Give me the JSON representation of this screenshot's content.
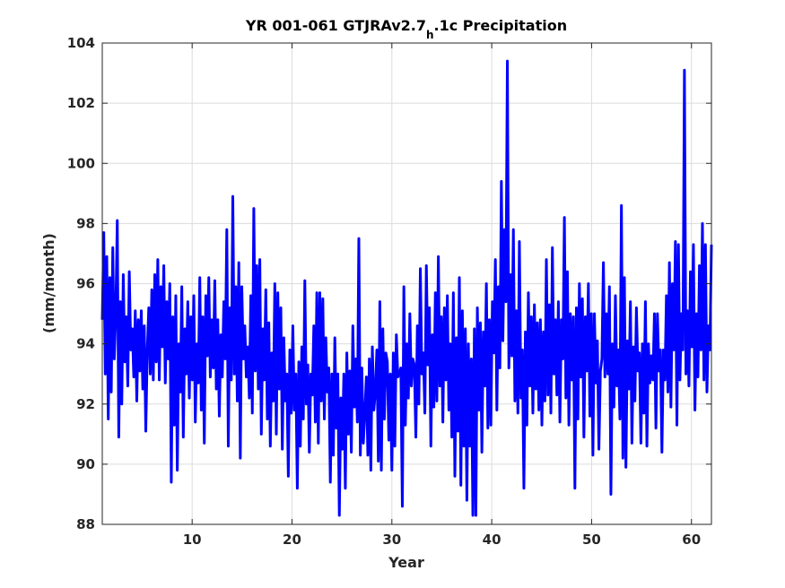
{
  "chart_data": {
    "type": "line",
    "title_main": "YR 001-061 GTJRAv2.7",
    "title_sub": "h",
    "title_tail": ".1c Precipitation",
    "xlabel": "Year",
    "ylabel": "(mm/month)",
    "xlim": [
      1,
      62
    ],
    "ylim": [
      88,
      104
    ],
    "xticks": [
      10,
      20,
      30,
      40,
      50,
      60
    ],
    "yticks": [
      88,
      90,
      92,
      94,
      96,
      98,
      100,
      102,
      104
    ],
    "grid": true,
    "line_color": "#0000ff",
    "series": [
      {
        "x_start": 1,
        "x_end": 62,
        "values": [
          94.8,
          97.7,
          93.0,
          96.9,
          91.5,
          96.2,
          92.4,
          97.2,
          93.5,
          95.0,
          98.1,
          90.9,
          95.4,
          92.0,
          96.3,
          93.4,
          94.9,
          92.6,
          96.4,
          93.8,
          94.5,
          92.9,
          95.1,
          92.1,
          94.8,
          93.1,
          95.1,
          92.5,
          94.6,
          91.1,
          93.8,
          95.2,
          93.0,
          95.8,
          92.8,
          96.3,
          93.4,
          96.8,
          92.8,
          95.9,
          93.9,
          96.6,
          92.7,
          95.4,
          93.5,
          96.0,
          89.4,
          94.9,
          91.3,
          95.6,
          89.8,
          94.0,
          92.4,
          95.9,
          90.9,
          94.5,
          93.0,
          95.4,
          92.2,
          94.9,
          92.8,
          95.6,
          91.4,
          94.0,
          92.7,
          96.2,
          91.8,
          94.9,
          90.7,
          95.6,
          93.6,
          96.2,
          92.9,
          94.8,
          93.2,
          96.1,
          92.5,
          94.8,
          91.6,
          94.3,
          92.9,
          95.4,
          93.5,
          97.8,
          90.6,
          95.2,
          92.8,
          98.9,
          93.0,
          95.9,
          92.1,
          96.7,
          90.2,
          95.9,
          93.5,
          94.6,
          92.9,
          93.9,
          92.2,
          95.6,
          91.7,
          98.5,
          93.1,
          96.6,
          92.5,
          96.8,
          91.0,
          94.5,
          92.8,
          95.8,
          91.5,
          94.7,
          90.6,
          93.7,
          92.1,
          96.0,
          91.0,
          95.7,
          92.5,
          95.2,
          90.5,
          94.2,
          92.1,
          93.0,
          89.6,
          93.8,
          91.7,
          94.6,
          91.8,
          93.0,
          89.2,
          93.4,
          90.6,
          93.9,
          91.5,
          96.1,
          92.0,
          93.3,
          90.4,
          93.0,
          92.3,
          94.6,
          91.4,
          95.7,
          90.7,
          95.7,
          92.1,
          95.5,
          91.5,
          94.2,
          92.4,
          93.2,
          89.4,
          93.0,
          90.3,
          94.2,
          91.2,
          93.0,
          88.3,
          92.2,
          90.5,
          93.0,
          89.2,
          93.7,
          91.0,
          93.1,
          90.4,
          94.6,
          91.9,
          93.5,
          91.4,
          97.5,
          90.3,
          93.2,
          90.7,
          91.7,
          92.9,
          90.3,
          93.5,
          89.8,
          93.9,
          91.8,
          92.4,
          93.8,
          90.1,
          95.4,
          89.8,
          94.5,
          91.5,
          93.7,
          93.4,
          90.8,
          93.0,
          89.8,
          93.7,
          90.6,
          94.3,
          92.9,
          93.0,
          93.2,
          88.6,
          95.9,
          91.3,
          94.0,
          92.2,
          95.0,
          92.6,
          93.5,
          93.3,
          90.9,
          94.6,
          92.0,
          96.5,
          93.0,
          93.7,
          91.7,
          96.6,
          93.3,
          95.2,
          90.6,
          94.3,
          91.9,
          95.7,
          92.1,
          96.9,
          92.6,
          94.9,
          91.4,
          95.2,
          92.8,
          95.6,
          91.8,
          94.0,
          90.9,
          95.7,
          89.6,
          94.2,
          91.1,
          96.2,
          89.3,
          95.1,
          90.6,
          94.5,
          88.8,
          94.0,
          90.6,
          93.5,
          88.3,
          94.5,
          88.3,
          95.2,
          91.8,
          94.7,
          90.4,
          94.4,
          92.6,
          96.0,
          91.2,
          94.8,
          91.3,
          95.4,
          93.7,
          96.8,
          91.8,
          95.9,
          93.2,
          99.4,
          94.1,
          97.8,
          95.4,
          103.4,
          93.2,
          96.3,
          93.6,
          97.8,
          92.1,
          95.1,
          91.7,
          97.4,
          92.2,
          93.8,
          89.2,
          94.4,
          91.3,
          95.7,
          92.6,
          94.9,
          91.7,
          95.3,
          92.5,
          94.7,
          91.8,
          94.8,
          91.3,
          94.4,
          92.1,
          96.8,
          92.3,
          95.3,
          91.7,
          97.2,
          93.0,
          94.8,
          92.3,
          95.4,
          91.4,
          94.8,
          93.5,
          98.2,
          92.2,
          96.4,
          91.3,
          95.0,
          92.8,
          94.9,
          89.2,
          95.2,
          91.5,
          96.0,
          92.9,
          95.5,
          90.9,
          94.9,
          93.1,
          96.0,
          91.6,
          95.0,
          90.3,
          95.0,
          92.7,
          94.1,
          90.5,
          93.1,
          93.5,
          96.7,
          92.9,
          95.0,
          93.0,
          95.9,
          89.0,
          94.0,
          91.9,
          95.6,
          92.6,
          93.8,
          91.5,
          98.6,
          90.2,
          96.2,
          89.9,
          94.1,
          92.5,
          95.4,
          90.7,
          93.9,
          92.1,
          95.2,
          93.1,
          93.7,
          90.7,
          94.0,
          91.7,
          95.4,
          90.6,
          94.0,
          92.7,
          93.6,
          92.8,
          95.0,
          91.2,
          95.0,
          93.1,
          93.8,
          90.4,
          93.8,
          92.8,
          95.6,
          92.4,
          96.7,
          91.9,
          96.0,
          93.8,
          97.4,
          91.3,
          97.3,
          92.8,
          95.0,
          93.8,
          103.1,
          93.0,
          95.1,
          92.6,
          96.4,
          93.9,
          97.3,
          91.8,
          95.0,
          92.9,
          96.6,
          93.8,
          98.0,
          92.8,
          97.3,
          92.4,
          94.6,
          93.8,
          97.3
        ]
      }
    ]
  }
}
